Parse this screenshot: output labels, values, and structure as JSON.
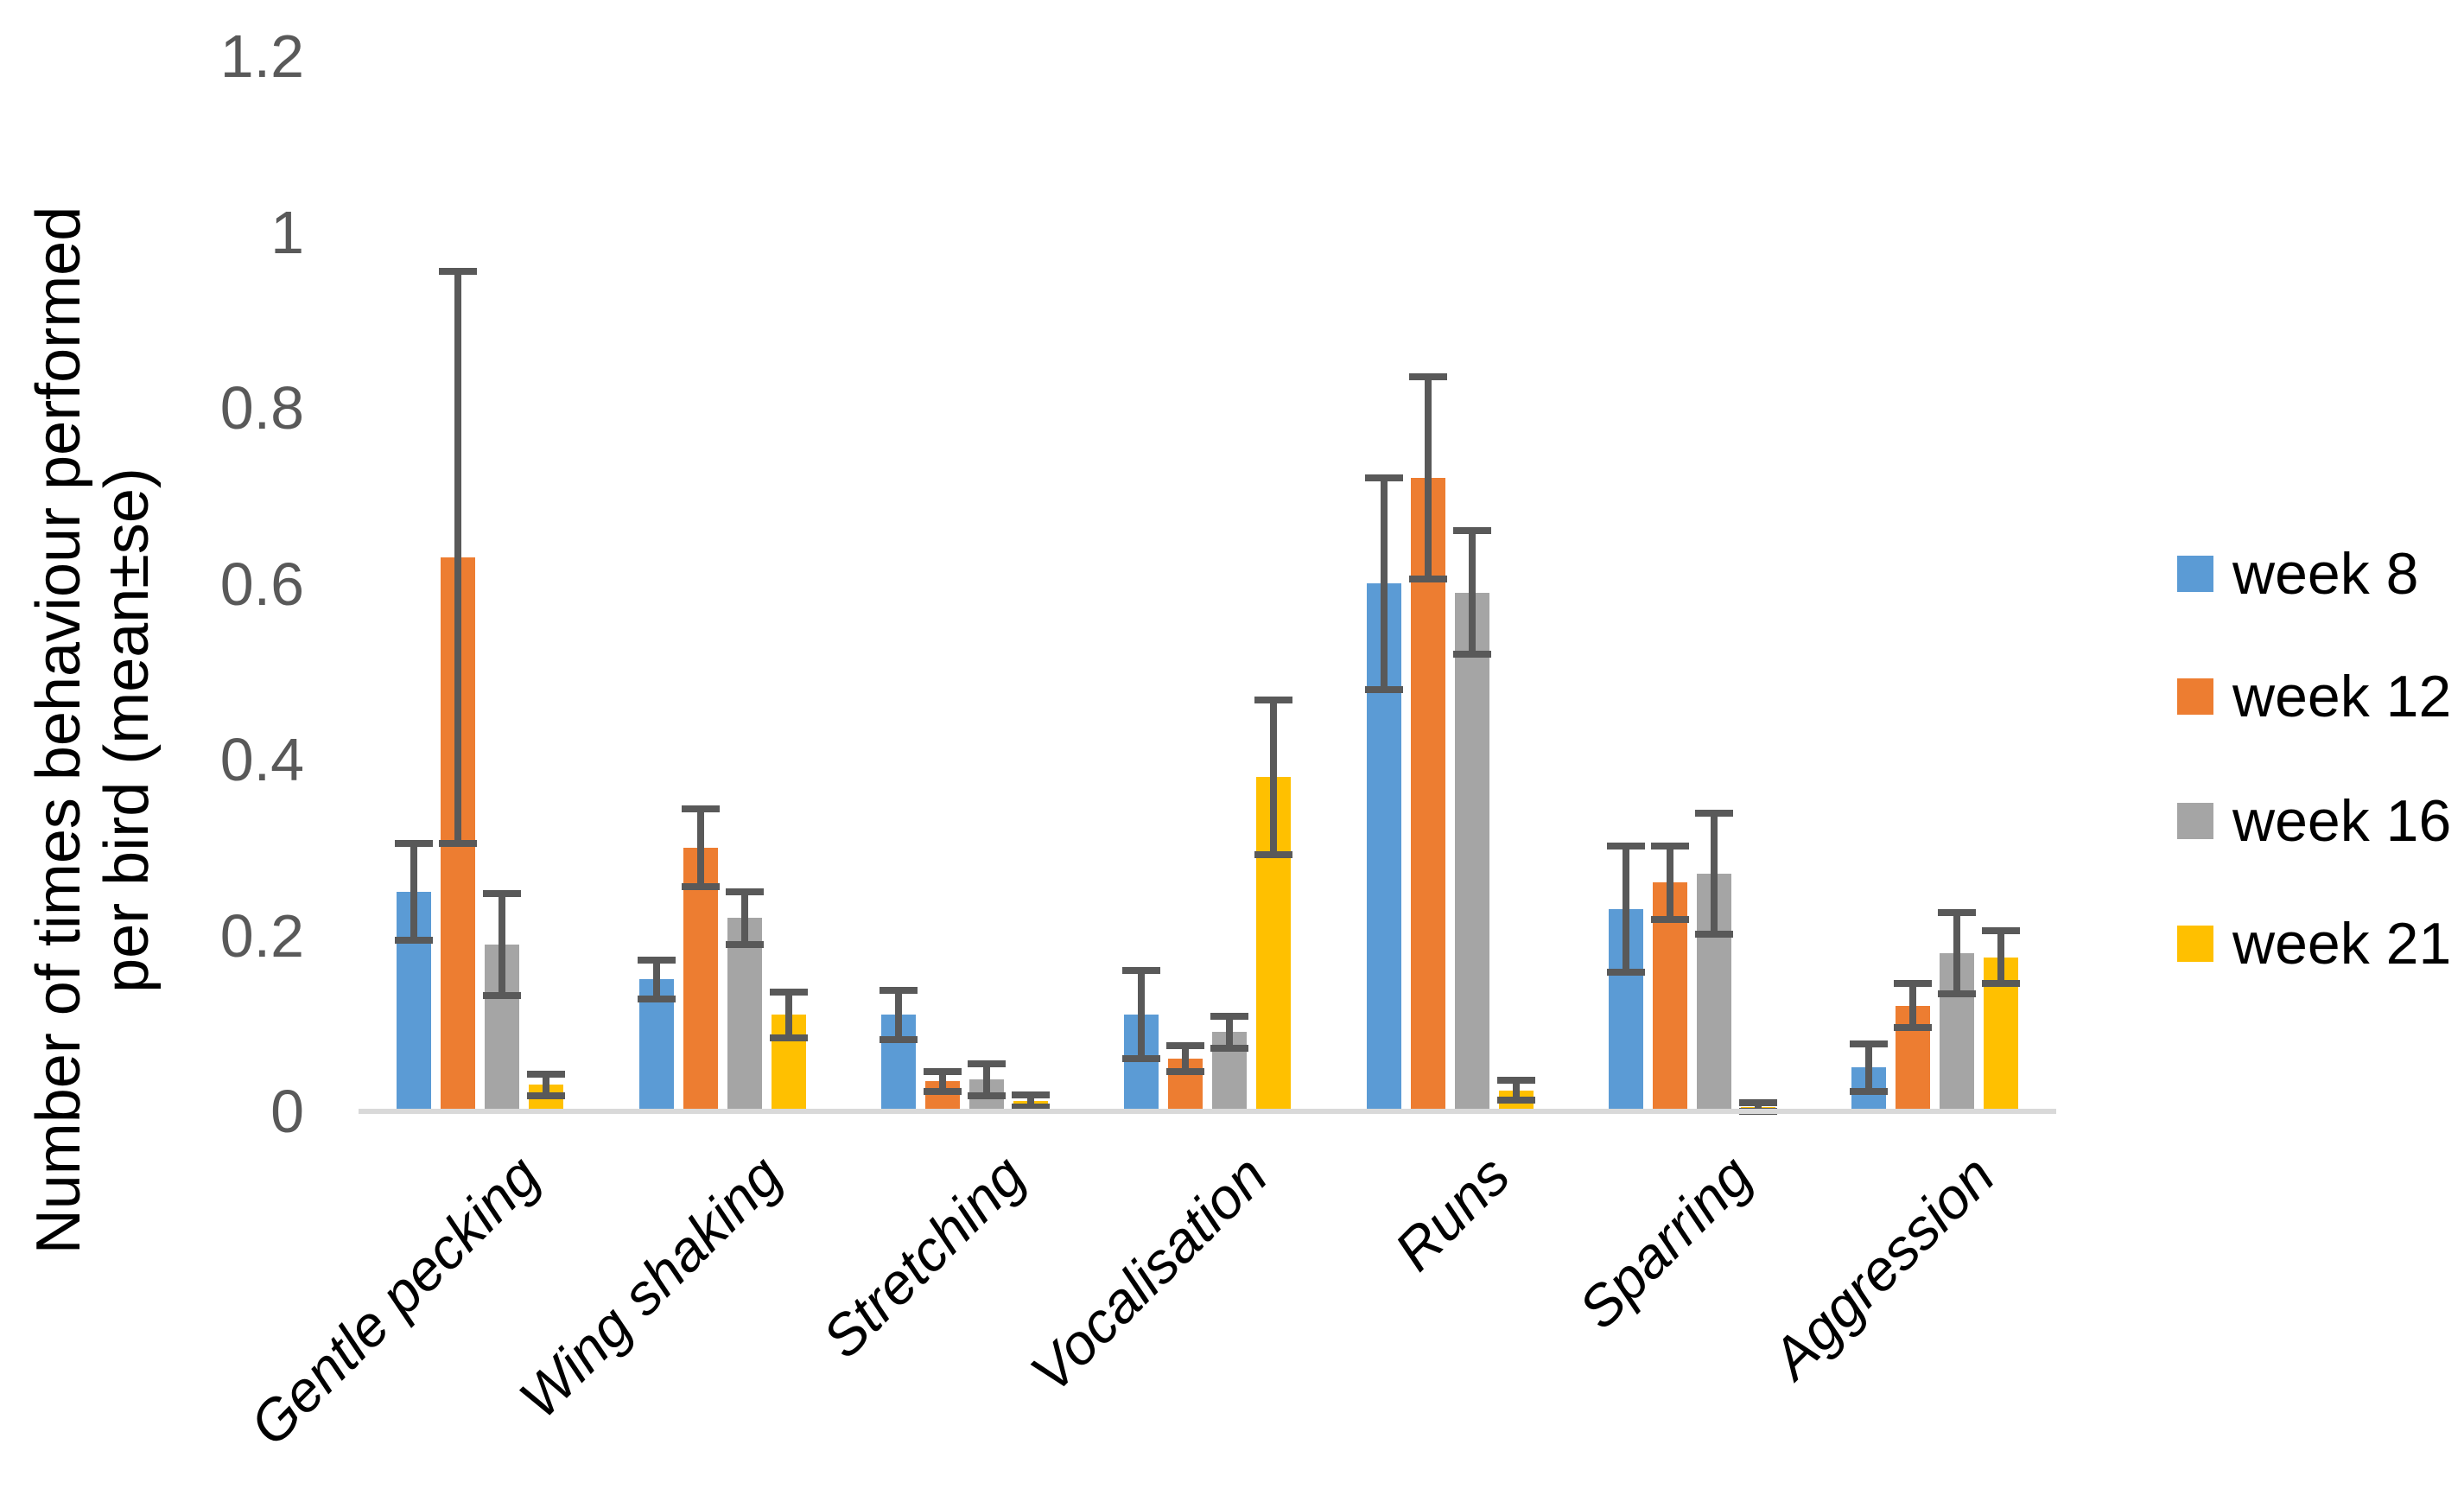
{
  "chart_data": {
    "type": "bar",
    "title": "",
    "y_axis_title_lines": [
      "Number of times behaviour performed",
      "per bird (mean±se)"
    ],
    "ylabel": "Number of times behaviour performed per bird (mean±se)",
    "xlabel": "",
    "categories": [
      "Gentle pecking",
      "Wing shaking",
      "Stretching",
      "Vocalisation",
      "Runs",
      "Sparring",
      "Aggression"
    ],
    "series": [
      {
        "name": "week 8",
        "color": "#5B9BD5",
        "values": [
          0.25,
          0.15,
          0.11,
          0.11,
          0.6,
          0.23,
          0.05
        ],
        "errors": [
          0.055,
          0.022,
          0.028,
          0.05,
          0.12,
          0.072,
          0.027
        ]
      },
      {
        "name": "week 12",
        "color": "#ED7D31",
        "values": [
          0.63,
          0.3,
          0.034,
          0.06,
          0.72,
          0.26,
          0.12
        ],
        "errors": [
          0.325,
          0.044,
          0.011,
          0.015,
          0.115,
          0.042,
          0.025
        ]
      },
      {
        "name": "week 16",
        "color": "#A5A5A5",
        "values": [
          0.19,
          0.22,
          0.036,
          0.09,
          0.59,
          0.27,
          0.18
        ],
        "errors": [
          0.058,
          0.03,
          0.018,
          0.018,
          0.07,
          0.069,
          0.046
        ]
      },
      {
        "name": "week 21",
        "color": "#FFC000",
        "values": [
          0.03,
          0.11,
          0.012,
          0.38,
          0.024,
          0.005,
          0.175
        ],
        "errors": [
          0.012,
          0.026,
          0.007,
          0.088,
          0.011,
          0.005,
          0.03
        ]
      }
    ],
    "y_tick_labels": [
      "0",
      "0.2",
      "0.4",
      "0.6",
      "0.8",
      "1",
      "1.2"
    ],
    "y_tick_values": [
      0,
      0.2,
      0.4,
      0.6,
      0.8,
      1,
      1.2
    ],
    "ylim": [
      0,
      1.2
    ],
    "grid": false,
    "legend_position": "right",
    "error_bar_color": "#595959",
    "axis_line_color": "#D9D9D9",
    "tick_label_color": "#595959"
  }
}
